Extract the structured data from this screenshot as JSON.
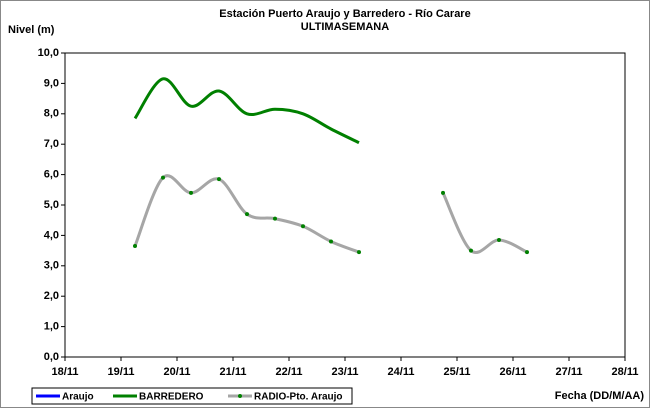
{
  "chart_data": {
    "type": "line",
    "title": "Estación Puerto Araujo y Barredero - Río Carare",
    "subtitle": "ULTIMASEMANA",
    "y_label": "Nivel (m)",
    "x_label": "Fecha (DD/M/AA)",
    "x": [
      19.25,
      19.75,
      20.25,
      20.75,
      21.25,
      21.75,
      22.25,
      22.75,
      23.25,
      23.75,
      24.25,
      24.75,
      25.25,
      25.75,
      26.25
    ],
    "series": [
      {
        "name": "Araujo",
        "color": "#0000ff",
        "values": [
          null,
          null,
          null,
          null,
          null,
          null,
          null,
          null,
          null,
          null,
          null,
          null,
          null,
          null,
          null
        ]
      },
      {
        "name": "BARREDERO",
        "color": "#008000",
        "values": [
          7.85,
          9.15,
          8.25,
          8.75,
          8.0,
          8.15,
          8.0,
          7.5,
          7.05,
          null,
          null,
          null,
          null,
          null,
          null
        ]
      },
      {
        "name": "RADIO-Pto. Araujo",
        "color": "#a6a6a6",
        "marker_color": "#008000",
        "values": [
          3.65,
          5.9,
          5.4,
          5.85,
          4.7,
          4.55,
          4.3,
          3.8,
          3.45,
          null,
          null,
          5.4,
          3.5,
          3.85,
          3.45
        ]
      }
    ],
    "xlim": [
      18,
      28
    ],
    "xticks": [
      {
        "value": 18,
        "label": "18/11"
      },
      {
        "value": 19,
        "label": "19/11"
      },
      {
        "value": 20,
        "label": "20/11"
      },
      {
        "value": 21,
        "label": "21/11"
      },
      {
        "value": 22,
        "label": "22/11"
      },
      {
        "value": 23,
        "label": "23/11"
      },
      {
        "value": 24,
        "label": "24/11"
      },
      {
        "value": 25,
        "label": "25/11"
      },
      {
        "value": 26,
        "label": "26/11"
      },
      {
        "value": 27,
        "label": "27/11"
      },
      {
        "value": 28,
        "label": "28/11"
      }
    ],
    "ylim": [
      0,
      10
    ],
    "yticks": [
      {
        "value": 0,
        "label": "0,0"
      },
      {
        "value": 1,
        "label": "1,0"
      },
      {
        "value": 2,
        "label": "2,0"
      },
      {
        "value": 3,
        "label": "3,0"
      },
      {
        "value": 4,
        "label": "4,0"
      },
      {
        "value": 5,
        "label": "5,0"
      },
      {
        "value": 6,
        "label": "6,0"
      },
      {
        "value": 7,
        "label": "7,0"
      },
      {
        "value": 8,
        "label": "8,0"
      },
      {
        "value": 9,
        "label": "9,0"
      },
      {
        "value": 10,
        "label": "10,0"
      }
    ],
    "smooth": true,
    "grid": false
  }
}
